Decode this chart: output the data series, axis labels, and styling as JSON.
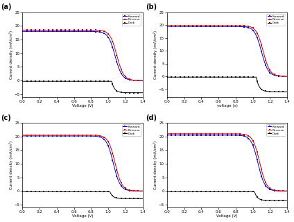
{
  "subplots": [
    "a",
    "b",
    "c",
    "d"
  ],
  "forward_color": "#0000cc",
  "reverse_color": "#cc0000",
  "dark_color": "#000000",
  "xlabel_a": "Voltage (V)",
  "xlabel_b": "voltage (v)",
  "xlabel_c": "Voltage (V)",
  "xlabel_d": "Voltage (V)",
  "ylabel": "Current density (mA/cm²)",
  "xlim": [
    0.0,
    1.4
  ],
  "xticks": [
    0.0,
    0.2,
    0.4,
    0.6,
    0.8,
    1.0,
    1.2,
    1.4
  ],
  "panels": [
    {
      "label": "(a)",
      "ylim": [
        -6,
        25
      ],
      "yticks": [
        -5,
        0,
        5,
        10,
        15,
        20,
        25
      ],
      "jsc_forward": 18.0,
      "jsc_reverse": 18.5,
      "voc_forward": 1.08,
      "voc_reverse": 1.1,
      "dark_flat": -0.3,
      "dark_drop_v": 1.04,
      "dark_drop_j": -4.5,
      "ff_forward": 0.78,
      "ff_reverse": 0.8
    },
    {
      "label": "(b)",
      "ylim": [
        -8,
        25
      ],
      "yticks": [
        -5,
        0,
        5,
        10,
        15,
        20,
        25
      ],
      "jsc_forward": 19.5,
      "jsc_reverse": 19.8,
      "voc_forward": 1.1,
      "voc_reverse": 1.12,
      "dark_flat": -0.3,
      "dark_drop_v": 1.04,
      "dark_drop_j": -6.0,
      "ff_forward": 0.82,
      "ff_reverse": 0.83
    },
    {
      "label": "(c)",
      "ylim": [
        -6,
        25
      ],
      "yticks": [
        -5,
        0,
        5,
        10,
        15,
        20,
        25
      ],
      "jsc_forward": 20.2,
      "jsc_reverse": 20.5,
      "voc_forward": 1.06,
      "voc_reverse": 1.08,
      "dark_flat": -0.3,
      "dark_drop_v": 1.02,
      "dark_drop_j": -2.8,
      "ff_forward": 0.76,
      "ff_reverse": 0.78
    },
    {
      "label": "(d)",
      "ylim": [
        -6,
        25
      ],
      "yticks": [
        -5,
        0,
        5,
        10,
        15,
        20,
        25
      ],
      "jsc_forward": 20.5,
      "jsc_reverse": 21.0,
      "voc_forward": 1.06,
      "voc_reverse": 1.08,
      "dark_flat": -0.3,
      "dark_drop_v": 1.02,
      "dark_drop_j": -3.5,
      "ff_forward": 0.76,
      "ff_reverse": 0.78
    }
  ]
}
